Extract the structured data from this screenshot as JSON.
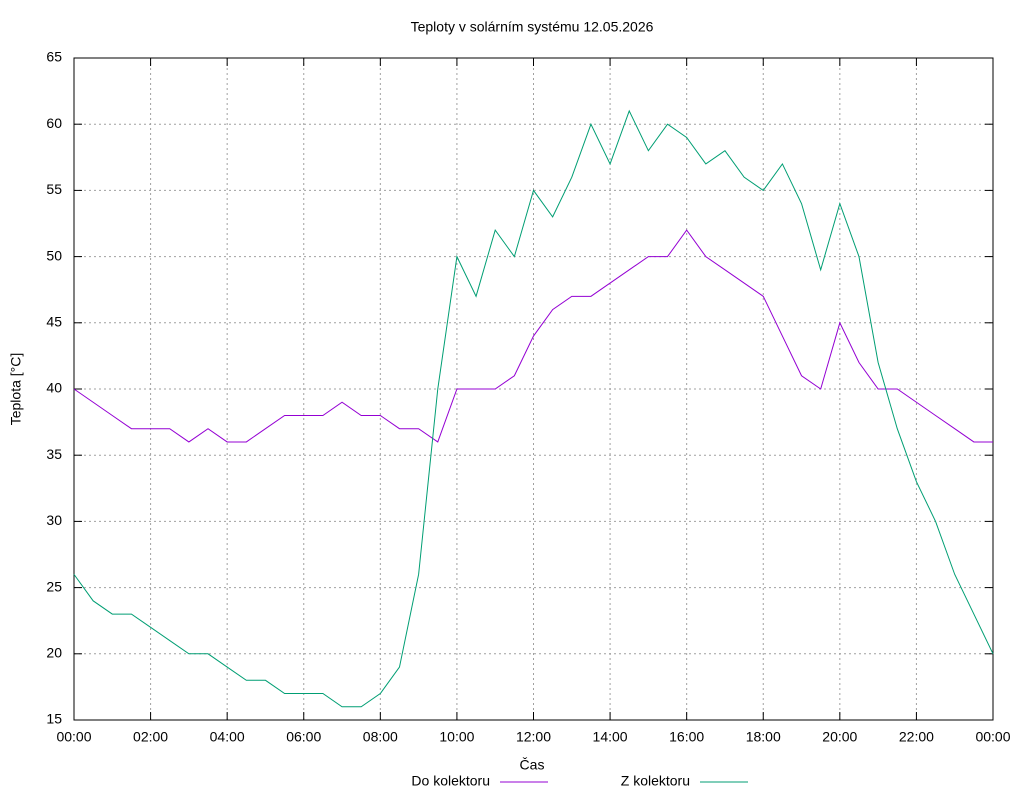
{
  "chart_data": {
    "type": "line",
    "title": "Teploty v solárním systému 12.05.2026",
    "xlabel": "Čas",
    "ylabel": "Teplota [°C]",
    "x": [
      0,
      0.5,
      1,
      1.5,
      2,
      2.5,
      3,
      3.5,
      4,
      4.5,
      5,
      5.5,
      6,
      6.5,
      7,
      7.5,
      8,
      8.5,
      9,
      9.5,
      10,
      10.5,
      11,
      11.5,
      12,
      12.5,
      13,
      13.5,
      14,
      14.5,
      15,
      15.5,
      16,
      16.5,
      17,
      17.5,
      18,
      18.5,
      19,
      19.5,
      20,
      20.5,
      21,
      21.5,
      22,
      22.5,
      23,
      23.5,
      24
    ],
    "series": [
      {
        "name": "Do kolektoru",
        "color": "#9400d3",
        "values": [
          40,
          39,
          38,
          37,
          37,
          37,
          36,
          37,
          36,
          36,
          37,
          38,
          38,
          38,
          39,
          38,
          38,
          37,
          37,
          36,
          40,
          40,
          40,
          41,
          44,
          46,
          47,
          47,
          48,
          49,
          50,
          50,
          52,
          50,
          49,
          48,
          47,
          44,
          41,
          40,
          45,
          42,
          40,
          40,
          39,
          38,
          37,
          36,
          36
        ]
      },
      {
        "name": "Z kolektoru",
        "color": "#009e73",
        "values": [
          26,
          24,
          23,
          23,
          22,
          21,
          20,
          20,
          19,
          18,
          18,
          17,
          17,
          17,
          16,
          16,
          17,
          19,
          26,
          40,
          50,
          47,
          52,
          50,
          55,
          53,
          56,
          60,
          57,
          61,
          58,
          60,
          59,
          57,
          58,
          56,
          55,
          57,
          54,
          49,
          54,
          50,
          42,
          37,
          33,
          30,
          26,
          23,
          20
        ]
      }
    ],
    "xlim": [
      0,
      24
    ],
    "xticks": [
      {
        "value": 0,
        "label": "00:00"
      },
      {
        "value": 2,
        "label": "02:00"
      },
      {
        "value": 4,
        "label": "04:00"
      },
      {
        "value": 6,
        "label": "06:00"
      },
      {
        "value": 8,
        "label": "08:00"
      },
      {
        "value": 10,
        "label": "10:00"
      },
      {
        "value": 12,
        "label": "12:00"
      },
      {
        "value": 14,
        "label": "14:00"
      },
      {
        "value": 16,
        "label": "16:00"
      },
      {
        "value": 18,
        "label": "18:00"
      },
      {
        "value": 20,
        "label": "20:00"
      },
      {
        "value": 22,
        "label": "22:00"
      },
      {
        "value": 24,
        "label": "00:00"
      }
    ],
    "ylim": [
      15,
      65
    ],
    "yticks": [
      15,
      20,
      25,
      30,
      35,
      40,
      45,
      50,
      55,
      60,
      65
    ],
    "grid": true,
    "legend": "bottom"
  }
}
